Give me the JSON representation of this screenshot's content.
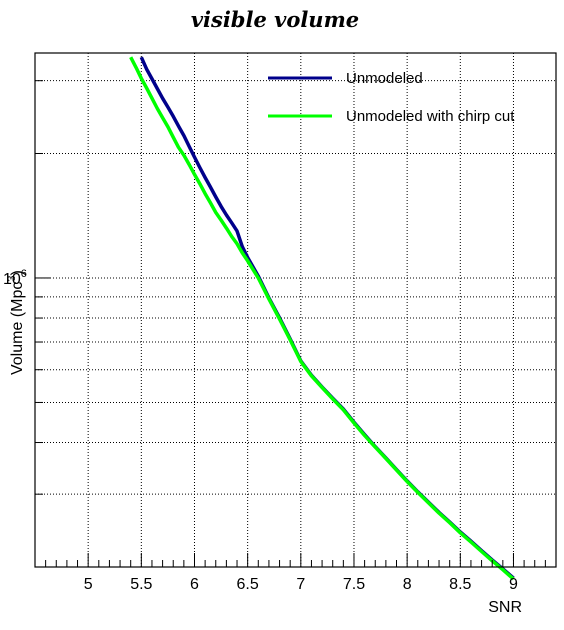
{
  "chart_data": {
    "type": "line",
    "title": "visible volume",
    "xlabel": "SNR",
    "ylabel_prefix": "Volume (Mpc",
    "ylabel_exp": "3",
    "ylabel_suffix": ")",
    "xlim": [
      4.5,
      9.4
    ],
    "ylim": [
      200000,
      3500000
    ],
    "y_scale": "log",
    "grid": true,
    "legend_position": "top-right",
    "x_ticks": [
      5,
      5.5,
      6,
      6.5,
      7,
      7.5,
      8,
      8.5,
      9
    ],
    "x_tick_labels": [
      "5",
      "5.5",
      "6",
      "6.5",
      "7",
      "7.5",
      "8",
      "8.5",
      "9"
    ],
    "y_major_tick_label_base": "10",
    "y_major_tick_label_exp": "6",
    "y_major_tick_value": 1000000,
    "series": [
      {
        "name": "Unmodeled",
        "color": "#00008b",
        "x": [
          5.5,
          5.55,
          5.6,
          5.65,
          5.7,
          5.75,
          5.8,
          5.85,
          5.9,
          5.95,
          6.0,
          6.05,
          6.1,
          6.15,
          6.2,
          6.25,
          6.3,
          6.35,
          6.4,
          6.45,
          6.5,
          6.6,
          6.7,
          6.8,
          6.9,
          7.0,
          7.1,
          7.2,
          7.3,
          7.4,
          7.5,
          7.6,
          7.7,
          7.8,
          7.9,
          8.0,
          8.1,
          8.2,
          8.3,
          8.4,
          8.5,
          8.6,
          8.7,
          8.8,
          8.9,
          9.0
        ],
        "y": [
          3420000,
          3200000,
          3030000,
          2870000,
          2720000,
          2590000,
          2460000,
          2330000,
          2210000,
          2080000,
          1960000,
          1850000,
          1750000,
          1660000,
          1570000,
          1490000,
          1420000,
          1360000,
          1300000,
          1190000,
          1120000,
          1010000,
          895000,
          800000,
          712000,
          630000,
          582000,
          545000,
          512000,
          482000,
          448000,
          418000,
          391000,
          367000,
          344000,
          323000,
          304000,
          287000,
          271000,
          257000,
          243000,
          231000,
          219000,
          208000,
          198000,
          188000
        ]
      },
      {
        "name": "Unmodeled with chirp cut",
        "color": "#00ff00",
        "x": [
          5.4,
          5.45,
          5.5,
          5.55,
          5.6,
          5.65,
          5.7,
          5.75,
          5.8,
          5.85,
          5.9,
          5.95,
          6.0,
          6.05,
          6.1,
          6.15,
          6.2,
          6.25,
          6.3,
          6.35,
          6.4,
          6.45,
          6.5,
          6.6,
          6.7,
          6.8,
          6.9,
          7.0,
          7.1,
          7.2,
          7.3,
          7.4,
          7.5,
          7.6,
          7.7,
          7.8,
          7.9,
          8.0,
          8.1,
          8.2,
          8.3,
          8.4,
          8.5,
          8.6,
          8.7,
          8.8,
          8.9,
          9.0
        ],
        "y": [
          3420000,
          3230000,
          3040000,
          2880000,
          2720000,
          2570000,
          2440000,
          2320000,
          2190000,
          2070000,
          1980000,
          1880000,
          1780000,
          1690000,
          1600000,
          1520000,
          1440000,
          1380000,
          1320000,
          1260000,
          1210000,
          1150000,
          1100000,
          1000000,
          890000,
          795000,
          708000,
          628000,
          580000,
          543000,
          510000,
          480000,
          446000,
          416000,
          390000,
          366000,
          343000,
          322000,
          303000,
          286000,
          270000,
          256000,
          242000,
          230000,
          218000,
          207000,
          197000,
          187000
        ]
      }
    ]
  }
}
